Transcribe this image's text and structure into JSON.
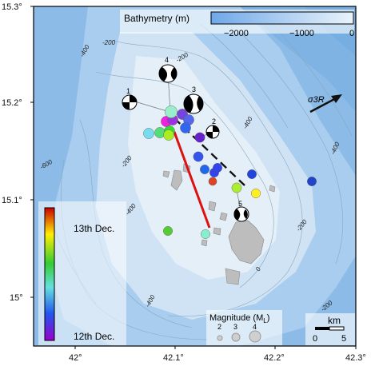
{
  "map": {
    "title": "",
    "bathymetry_colorbar": {
      "label": "Bathymetry (m)",
      "ticks": [
        "−2000",
        "−1000",
        "0"
      ],
      "colors": [
        "#6fa8e8",
        "#eaf3fb"
      ]
    },
    "axes": {
      "lat_labels": [
        "15.3°",
        "15.2°",
        "15.1°",
        "15°"
      ],
      "lon_labels": [
        "42°",
        "42.1°",
        "42.2°",
        "42.3°"
      ]
    },
    "contours": [
      {
        "label": "-200"
      },
      {
        "label": "-200"
      },
      {
        "label": "-200"
      },
      {
        "label": "-200"
      },
      {
        "label": "-400"
      },
      {
        "label": "-400"
      },
      {
        "label": "-400"
      },
      {
        "label": "-400"
      },
      {
        "label": "-400"
      },
      {
        "label": "-600"
      },
      {
        "label": "-200"
      },
      {
        "label": "0"
      }
    ],
    "stress_arrow": {
      "label": "σ3R"
    },
    "focal_mechanisms": [
      {
        "id": "1"
      },
      {
        "id": "2"
      },
      {
        "id": "3"
      },
      {
        "id": "4"
      },
      {
        "id": "5"
      }
    ],
    "time_colorbar": {
      "labels": [
        "13th Dec.",
        "12th Dec."
      ],
      "colors": [
        "#cc0000",
        "#ffee00",
        "#33cc33",
        "#66e0e0",
        "#2255ee",
        "#9900cc"
      ]
    },
    "magnitude_legend": {
      "title": "Magnitude (M",
      "subscript": "L",
      "title_end": ")",
      "values": [
        "2",
        "3",
        "4"
      ]
    },
    "scale_bar": {
      "label": "km",
      "ticks": [
        "0",
        "5"
      ]
    },
    "colors": {
      "deep_ocean": "#8bbbe6",
      "mid_ocean": "#b9d7f0",
      "shallow": "#e4eff8",
      "island": "#bdbdbd",
      "red_line": "#dd1111",
      "dashed_line": "#111111"
    },
    "events": [
      {
        "color": "#ee22dd",
        "mag": 3
      },
      {
        "color": "#9933dd",
        "mag": 3
      },
      {
        "color": "#7744dd",
        "mag": 3
      },
      {
        "color": "#5566ee",
        "mag": 3
      },
      {
        "color": "#3366ee",
        "mag": 3
      },
      {
        "color": "#99eecc",
        "mag": 3.5
      },
      {
        "color": "#77ddee",
        "mag": 3
      },
      {
        "color": "#55dd77",
        "mag": 3
      },
      {
        "color": "#33dd33",
        "mag": 3
      },
      {
        "color": "#aaee22",
        "mag": 3
      },
      {
        "color": "#6622cc",
        "mag": 2.8
      },
      {
        "color": "#3355ee",
        "mag": 2.8
      },
      {
        "color": "#3344ee",
        "mag": 2.6
      },
      {
        "color": "#2266ee",
        "mag": 2.6
      },
      {
        "color": "#2244dd",
        "mag": 2.6
      },
      {
        "color": "#dd4422",
        "mag": 2.3
      },
      {
        "color": "#aaee33",
        "mag": 2.8
      },
      {
        "color": "#ffee22",
        "mag": 2.6
      },
      {
        "color": "#2244cc",
        "mag": 2.6
      },
      {
        "color": "#55cc33",
        "mag": 2.6
      },
      {
        "color": "#88eecc",
        "mag": 2.6
      },
      {
        "color": "#3344ee",
        "mag": 2.6
      }
    ]
  }
}
